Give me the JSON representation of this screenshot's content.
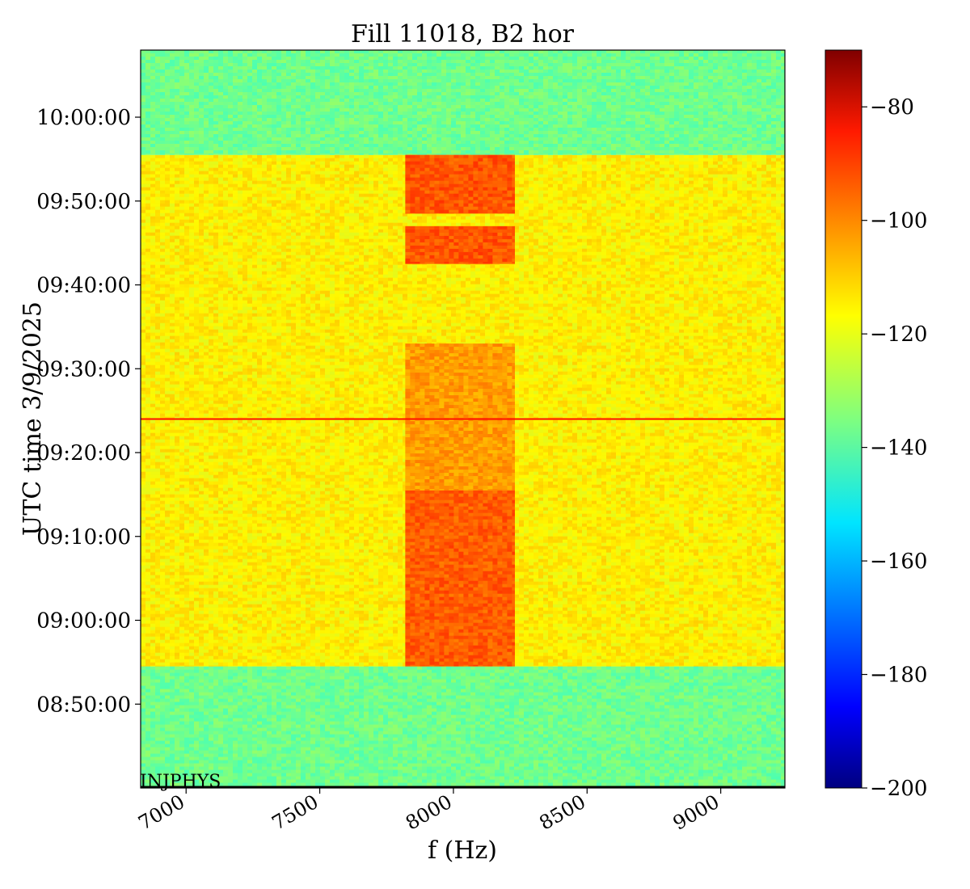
{
  "chart_data": {
    "type": "heatmap",
    "title": "Fill 11018, B2 hor",
    "xlabel": "f (Hz)",
    "ylabel": "UTC time 3/9/2025",
    "annotation": "INJPHYS",
    "xlim": [
      6830,
      9240
    ],
    "ylim": [
      "08:40:00",
      "10:08:00"
    ],
    "x_ticks": [
      7000,
      7500,
      8000,
      8500,
      9000
    ],
    "x_tick_labels": [
      "7000",
      "7500",
      "8000",
      "8500",
      "9000"
    ],
    "y_ticks": [
      "08:50:00",
      "09:00:00",
      "09:10:00",
      "09:20:00",
      "09:30:00",
      "09:40:00",
      "09:50:00",
      "10:00:00"
    ],
    "colorbar": {
      "colormap": "jet",
      "range": [
        -200,
        -70
      ],
      "ticks": [
        -80,
        -100,
        -120,
        -140,
        -160,
        -180,
        -200
      ],
      "tick_labels": [
        "−80",
        "−100",
        "−120",
        "−140",
        "−160",
        "−180",
        "−200"
      ]
    },
    "regions": [
      {
        "t_start": "08:40:00",
        "t_end": "08:54:30",
        "f_start": 6830,
        "f_end": 9240,
        "level_db": -137
      },
      {
        "t_start": "08:54:30",
        "t_end": "09:55:30",
        "f_start": 6830,
        "f_end": 9240,
        "level_db": -117
      },
      {
        "t_start": "09:55:30",
        "t_end": "10:08:00",
        "f_start": 6830,
        "f_end": 9240,
        "level_db": -137
      },
      {
        "t_start": "08:54:30",
        "t_end": "09:15:30",
        "f_start": 7820,
        "f_end": 8230,
        "level_db": -98
      },
      {
        "t_start": "09:15:30",
        "t_end": "09:33:00",
        "f_start": 7820,
        "f_end": 8230,
        "level_db": -106
      },
      {
        "t_start": "09:42:30",
        "t_end": "09:47:00",
        "f_start": 7820,
        "f_end": 8230,
        "level_db": -97
      },
      {
        "t_start": "09:48:30",
        "t_end": "09:55:30",
        "f_start": 7820,
        "f_end": 8230,
        "level_db": -97
      }
    ],
    "lines": [
      {
        "orientation": "horizontal",
        "t": "09:24:00",
        "level_db": -88
      }
    ]
  }
}
